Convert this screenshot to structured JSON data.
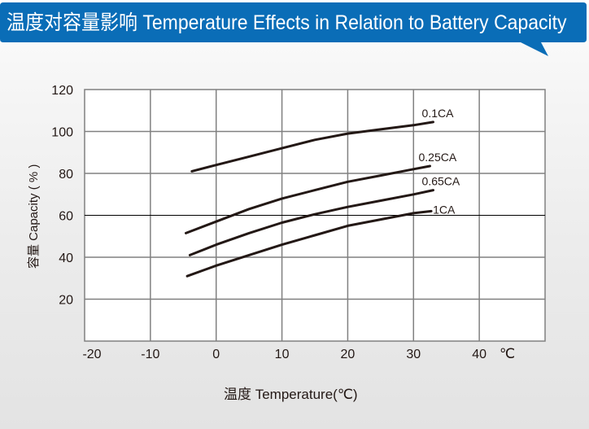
{
  "header": {
    "title": "温度对容量影响 Temperature Effects in Relation to Battery Capacity"
  },
  "colors": {
    "banner": "#0a6db7",
    "line": "#231815",
    "grid": "#808080"
  },
  "chart_data": {
    "type": "line",
    "title": "",
    "xlabel": "温度  Temperature(℃)",
    "ylabel": "容量 Capacity ( % )",
    "x_unit_label": "℃",
    "xlim": [
      -20,
      50
    ],
    "ylim": [
      0,
      120
    ],
    "x_ticks": [
      -20,
      -10,
      0,
      10,
      20,
      30,
      40
    ],
    "y_ticks": [
      20,
      40,
      60,
      80,
      100,
      120
    ],
    "grid": true,
    "series": [
      {
        "name": "0.1CA",
        "x": [
          -3.7,
          0,
          5,
          10,
          15,
          20,
          25,
          30,
          33
        ],
        "y": [
          81,
          84,
          88,
          92,
          96,
          99,
          101,
          103,
          104.5
        ]
      },
      {
        "name": "0.25CA",
        "x": [
          -4.6,
          0,
          5,
          10,
          15,
          20,
          25,
          30,
          32.5
        ],
        "y": [
          51.5,
          57,
          63,
          68,
          72,
          76,
          79,
          82,
          83.5
        ]
      },
      {
        "name": "0.65CA",
        "x": [
          -4,
          0,
          5,
          10,
          15,
          20,
          25,
          30,
          33
        ],
        "y": [
          41,
          46,
          51.5,
          56.5,
          60.5,
          64,
          67,
          70,
          72
        ]
      },
      {
        "name": "1CA",
        "x": [
          -4.4,
          0,
          5,
          10,
          15,
          20,
          25,
          30,
          32.7
        ],
        "y": [
          31,
          36,
          41,
          46,
          50.5,
          55,
          58,
          61,
          62
        ]
      }
    ]
  }
}
